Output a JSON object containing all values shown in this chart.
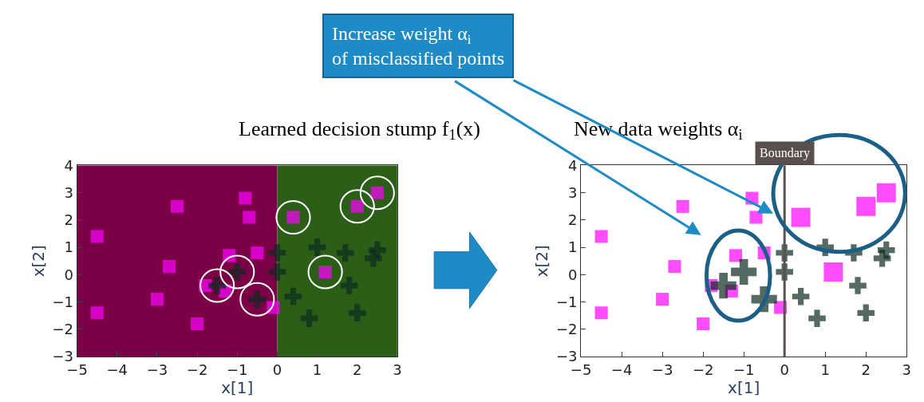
{
  "chart_data": [
    {
      "type": "scatter",
      "title": "Learned decision stump f$_{1}$(x)",
      "xlabel": "x[1]",
      "ylabel": "x[2]",
      "xlim": [
        -5,
        3
      ],
      "ylim": [
        -3,
        4
      ],
      "xticks": [
        -5,
        -4,
        -3,
        -2,
        -1,
        0,
        1,
        2,
        3
      ],
      "yticks": [
        -3,
        -2,
        -1,
        0,
        1,
        2,
        3,
        4
      ],
      "grid": false,
      "bands": [
        {
          "axis": "x",
          "from": -5,
          "to": 0,
          "color": "#7b0046"
        },
        {
          "axis": "x",
          "from": 0,
          "to": 3,
          "color": "#2b5e17"
        }
      ],
      "series": [
        {
          "marker": "square",
          "color": "#ff00ff",
          "x": [
            -4.5,
            -2.5,
            -0.8,
            -0.7,
            -2.7,
            -1.2,
            -0.5,
            -1.8,
            -1.3,
            -3.0,
            -4.5,
            -2.0,
            -0.1,
            0.4,
            2.0,
            2.5,
            1.2
          ],
          "values": [
            1.4,
            2.5,
            2.8,
            2.1,
            0.3,
            0.7,
            0.8,
            -0.4,
            -0.6,
            -0.9,
            -1.4,
            -1.8,
            -1.2,
            2.1,
            2.5,
            3.0,
            0.1
          ]
        },
        {
          "marker": "cross",
          "color": "#0d2b1f",
          "x": [
            0,
            0,
            1,
            1.7,
            2.4,
            2.5,
            0.4,
            1.8,
            0.8,
            2.0,
            -1.5,
            -1.0,
            -0.5
          ],
          "values": [
            0.8,
            0.1,
            1.0,
            0.8,
            0.6,
            0.9,
            -0.8,
            -0.4,
            -1.6,
            -1.4,
            -0.4,
            0.1,
            -0.9
          ]
        }
      ]
    },
    {
      "type": "bubble",
      "title": "New data weights α$_{i}$",
      "xlabel": "x[1]",
      "ylabel": "x[2]",
      "xlim": [
        -5,
        3
      ],
      "ylim": [
        -3,
        4
      ],
      "xticks": [
        -5,
        -4,
        -3,
        -2,
        -1,
        0,
        1,
        2,
        3
      ],
      "yticks": [
        -3,
        -2,
        -1,
        0,
        1,
        2,
        3,
        4
      ],
      "grid": false,
      "ref_lines": [
        {
          "axis": "x",
          "value": 0,
          "label": "Boundary",
          "color": "#5a4f4f"
        }
      ],
      "annotations": [
        "Increase weight α$_{i}$\nof misclassified points"
      ],
      "series": [
        {
          "marker": "square",
          "color": "#ff00ff",
          "x": [
            -4.5,
            -2.5,
            -0.8,
            -0.7,
            -2.7,
            -1.2,
            -0.5,
            -1.8,
            -1.3,
            -3.0,
            -4.5,
            -2.0,
            -0.1,
            0.4,
            2.0,
            2.5,
            1.2
          ],
          "values": [
            1.4,
            2.5,
            2.8,
            2.1,
            0.3,
            0.7,
            0.8,
            -0.4,
            -0.6,
            -0.9,
            -1.4,
            -1.8,
            -1.2,
            2.1,
            2.5,
            3.0,
            0.1
          ],
          "sizes": [
            0.45,
            0.45,
            0.45,
            0.45,
            0.45,
            0.45,
            0.45,
            0.45,
            0.45,
            0.45,
            0.45,
            0.45,
            0.45,
            1,
            1,
            1,
            1
          ]
        },
        {
          "marker": "cross",
          "color": "#0d2b1f",
          "x": [
            0,
            0,
            1,
            1.7,
            2.4,
            2.5,
            0.4,
            1.8,
            0.8,
            2.0,
            -1.5,
            -1.0,
            -0.5
          ],
          "values": [
            0.8,
            0.1,
            1.0,
            0.8,
            0.6,
            0.9,
            -0.8,
            -0.4,
            -1.6,
            -1.4,
            -0.4,
            0.1,
            -0.9
          ],
          "sizes": [
            0.45,
            0.45,
            0.45,
            0.45,
            0.45,
            0.45,
            0.45,
            0.45,
            0.45,
            0.45,
            1,
            1,
            1
          ]
        }
      ]
    }
  ]
}
